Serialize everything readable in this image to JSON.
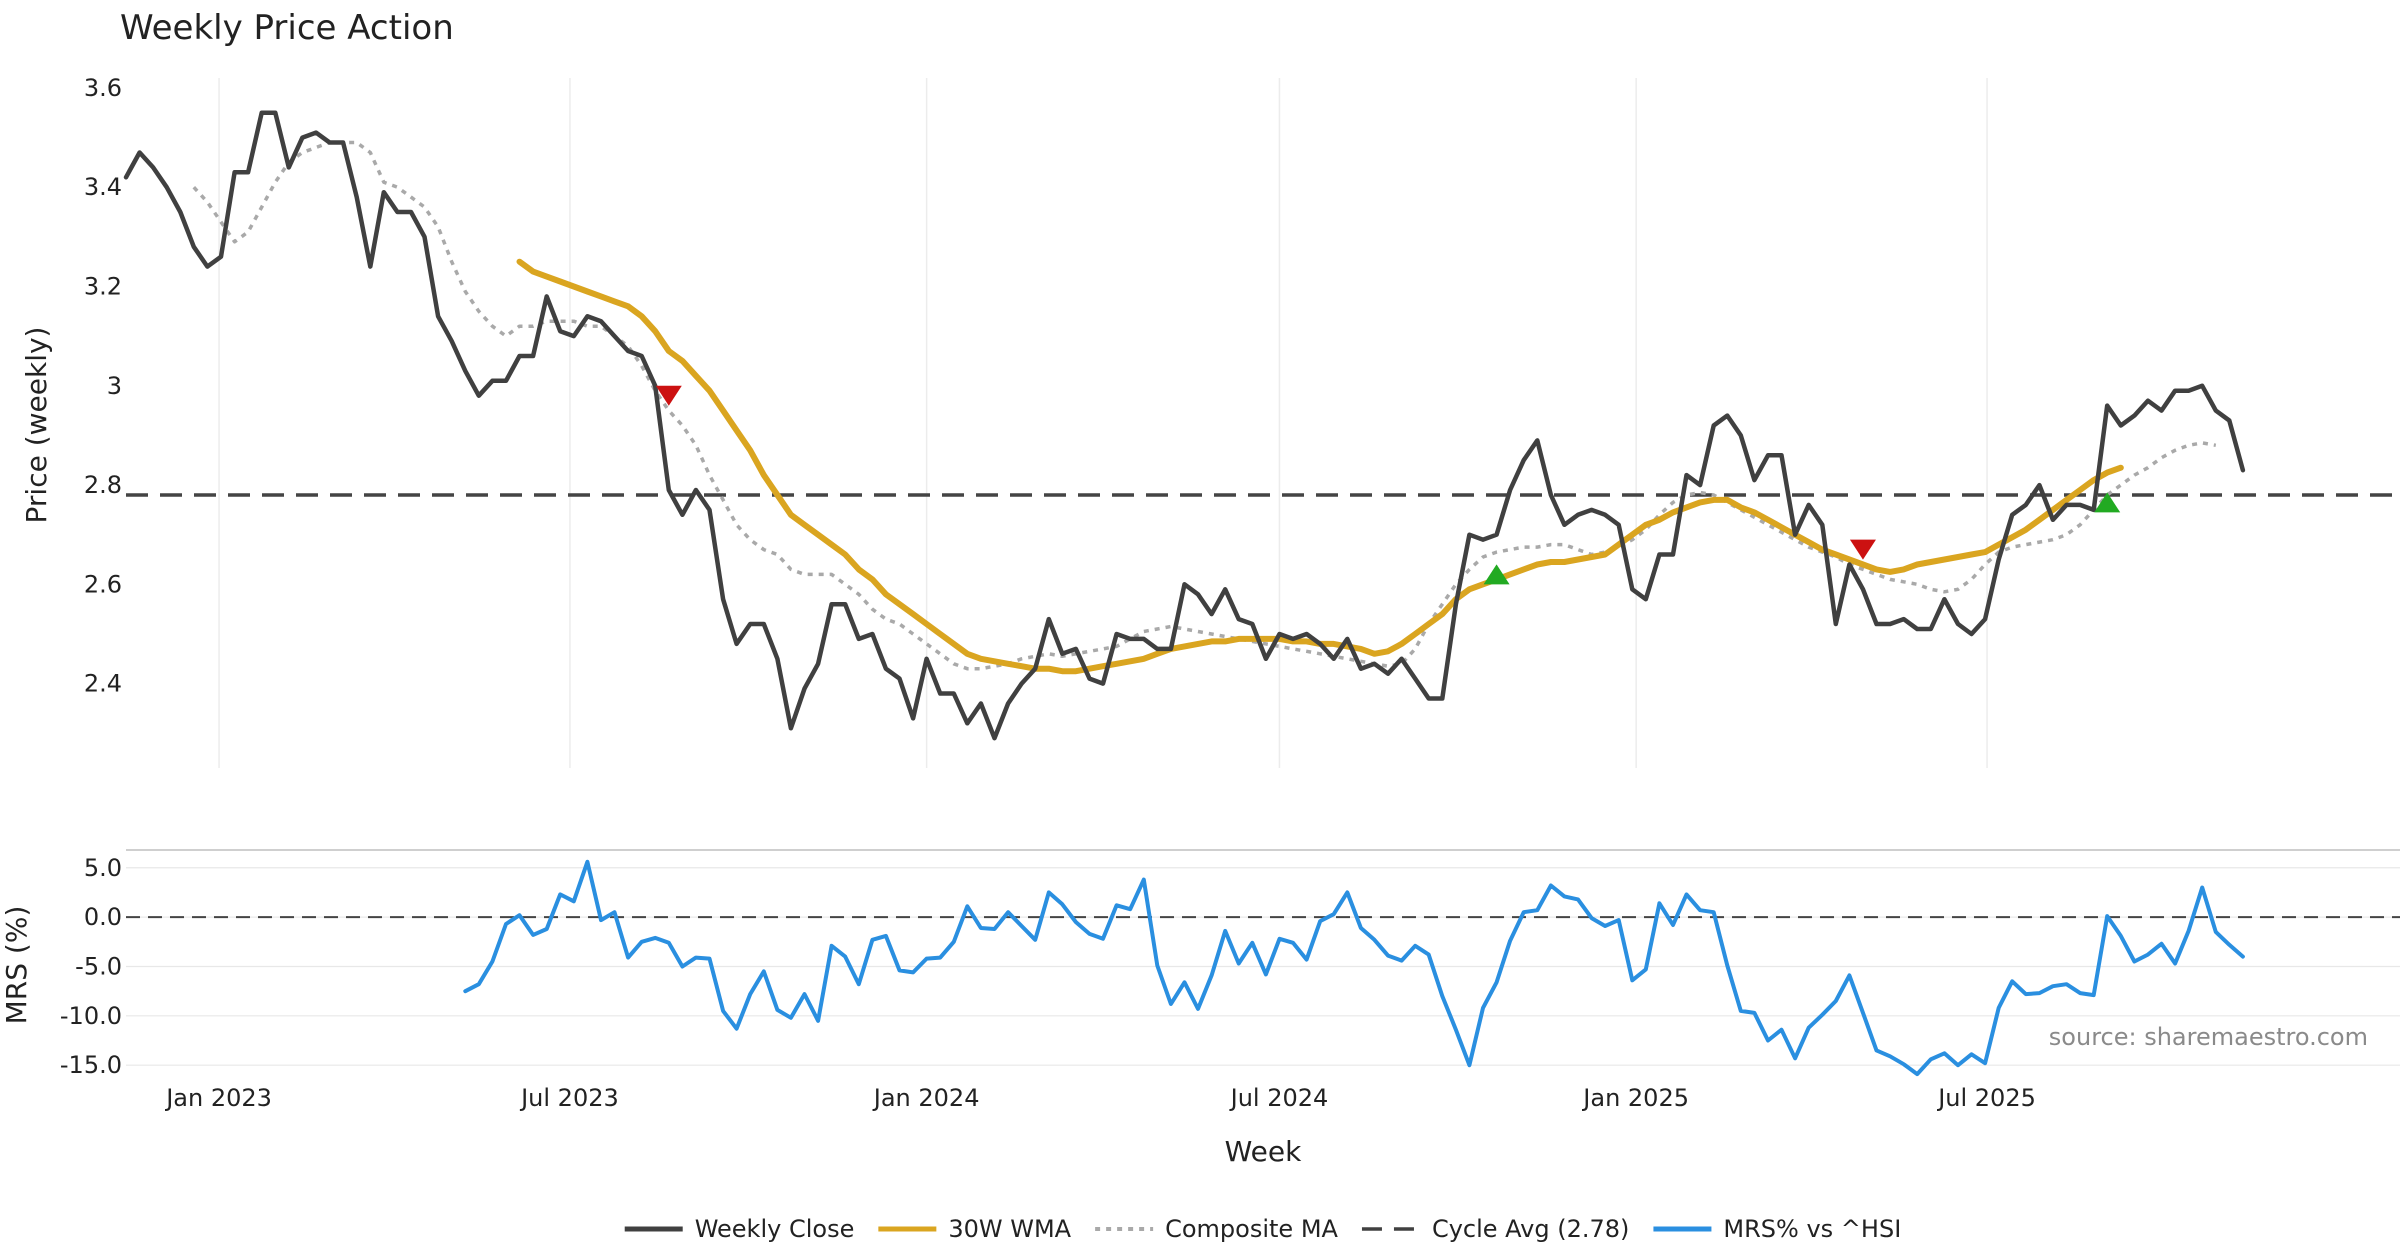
{
  "chart_data": {
    "type": "line",
    "title": "Weekly Price Action",
    "xlabel": "Week",
    "source_note": "source: sharemaestro.com",
    "x_start": "2022-11-14",
    "x_tick_labels": [
      "Jan 2023",
      "Jul 2023",
      "Jan 2024",
      "Jul 2024",
      "Jan 2025",
      "Jul 2025"
    ],
    "x_tick_dates": [
      "2023-01-01",
      "2023-07-01",
      "2024-01-01",
      "2024-07-01",
      "2025-01-01",
      "2025-07-01"
    ],
    "price_panel": {
      "ylabel": "Price (weekly)",
      "ylim": [
        2.23,
        3.62
      ],
      "y_ticks": [
        2.4,
        2.6,
        2.8,
        3.0,
        3.2,
        3.4,
        3.6
      ],
      "y_tick_labels": [
        "2.4",
        "2.6",
        "2.8",
        "3",
        "3.2",
        "3.4",
        "3.6"
      ],
      "cycle_avg": 2.78,
      "series": [
        {
          "name": "Weekly Close",
          "color": "#404040",
          "style": "solid",
          "start_index": 0,
          "values": [
            3.42,
            3.47,
            3.44,
            3.4,
            3.35,
            3.28,
            3.24,
            3.26,
            3.43,
            3.43,
            3.55,
            3.55,
            3.44,
            3.5,
            3.51,
            3.49,
            3.49,
            3.38,
            3.24,
            3.39,
            3.35,
            3.35,
            3.3,
            3.14,
            3.09,
            3.03,
            2.98,
            3.01,
            3.01,
            3.06,
            3.06,
            3.18,
            3.11,
            3.1,
            3.14,
            3.13,
            3.1,
            3.07,
            3.06,
            3.0,
            2.79,
            2.74,
            2.79,
            2.75,
            2.57,
            2.48,
            2.52,
            2.52,
            2.45,
            2.31,
            2.39,
            2.44,
            2.56,
            2.56,
            2.49,
            2.5,
            2.43,
            2.41,
            2.33,
            2.45,
            2.38,
            2.38,
            2.32,
            2.36,
            2.29,
            2.36,
            2.4,
            2.43,
            2.53,
            2.46,
            2.47,
            2.41,
            2.4,
            2.5,
            2.49,
            2.49,
            2.47,
            2.47,
            2.6,
            2.58,
            2.54,
            2.59,
            2.53,
            2.52,
            2.45,
            2.5,
            2.49,
            2.5,
            2.48,
            2.45,
            2.49,
            2.43,
            2.44,
            2.42,
            2.45,
            2.41,
            2.37,
            2.37,
            2.56,
            2.7,
            2.69,
            2.7,
            2.79,
            2.85,
            2.89,
            2.78,
            2.72,
            2.74,
            2.75,
            2.74,
            2.72,
            2.59,
            2.57,
            2.66,
            2.66,
            2.82,
            2.8,
            2.92,
            2.94,
            2.9,
            2.81,
            2.86,
            2.86,
            2.7,
            2.76,
            2.72,
            2.52,
            2.64,
            2.59,
            2.52,
            2.52,
            2.53,
            2.51,
            2.51,
            2.57,
            2.52,
            2.5,
            2.53,
            2.65,
            2.74,
            2.76,
            2.8,
            2.73,
            2.76,
            2.76,
            2.75,
            2.96,
            2.92,
            2.94,
            2.97,
            2.95,
            2.99,
            2.99,
            3.0,
            2.95,
            2.93,
            2.83
          ]
        },
        {
          "name": "30W WMA",
          "color": "#DAA520",
          "style": "solid",
          "start_index": 29,
          "values": [
            3.25,
            3.23,
            3.22,
            3.21,
            3.2,
            3.19,
            3.18,
            3.17,
            3.16,
            3.14,
            3.11,
            3.07,
            3.05,
            3.02,
            2.99,
            2.95,
            2.91,
            2.87,
            2.82,
            2.78,
            2.74,
            2.72,
            2.7,
            2.68,
            2.66,
            2.63,
            2.61,
            2.58,
            2.56,
            2.54,
            2.52,
            2.5,
            2.48,
            2.46,
            2.45,
            2.445,
            2.44,
            2.435,
            2.43,
            2.43,
            2.425,
            2.425,
            2.43,
            2.435,
            2.44,
            2.445,
            2.45,
            2.46,
            2.47,
            2.475,
            2.48,
            2.485,
            2.485,
            2.49,
            2.49,
            2.49,
            2.49,
            2.485,
            2.485,
            2.48,
            2.48,
            2.475,
            2.47,
            2.46,
            2.465,
            2.48,
            2.5,
            2.52,
            2.54,
            2.57,
            2.59,
            2.6,
            2.61,
            2.62,
            2.63,
            2.64,
            2.645,
            2.645,
            2.65,
            2.655,
            2.66,
            2.68,
            2.7,
            2.72,
            2.73,
            2.745,
            2.755,
            2.765,
            2.77,
            2.77,
            2.755,
            2.745,
            2.73,
            2.715,
            2.7,
            2.685,
            2.67,
            2.66,
            2.65,
            2.64,
            2.63,
            2.625,
            2.63,
            2.64,
            2.645,
            2.65,
            2.655,
            2.66,
            2.665,
            2.68,
            2.695,
            2.71,
            2.73,
            2.75,
            2.77,
            2.79,
            2.81,
            2.825,
            2.835
          ]
        },
        {
          "name": "Composite MA",
          "color": "#A9A9A9",
          "style": "dotted",
          "start_index": 5,
          "values": [
            3.4,
            3.37,
            3.33,
            3.29,
            3.31,
            3.36,
            3.41,
            3.45,
            3.47,
            3.48,
            3.49,
            3.49,
            3.49,
            3.47,
            3.41,
            3.4,
            3.38,
            3.36,
            3.32,
            3.25,
            3.19,
            3.15,
            3.12,
            3.1,
            3.12,
            3.12,
            3.13,
            3.13,
            3.13,
            3.12,
            3.12,
            3.1,
            3.08,
            3.04,
            2.99,
            2.95,
            2.92,
            2.88,
            2.82,
            2.77,
            2.72,
            2.69,
            2.67,
            2.66,
            2.63,
            2.62,
            2.62,
            2.62,
            2.6,
            2.58,
            2.55,
            2.53,
            2.52,
            2.5,
            2.48,
            2.46,
            2.44,
            2.43,
            2.43,
            2.435,
            2.44,
            2.45,
            2.455,
            2.46,
            2.455,
            2.46,
            2.465,
            2.47,
            2.475,
            2.49,
            2.505,
            2.51,
            2.515,
            2.51,
            2.505,
            2.5,
            2.495,
            2.49,
            2.485,
            2.48,
            2.475,
            2.47,
            2.465,
            2.46,
            2.455,
            2.45,
            2.445,
            2.44,
            2.435,
            2.44,
            2.47,
            2.52,
            2.56,
            2.6,
            2.63,
            2.655,
            2.665,
            2.67,
            2.675,
            2.675,
            2.68,
            2.68,
            2.67,
            2.66,
            2.665,
            2.675,
            2.69,
            2.71,
            2.74,
            2.765,
            2.78,
            2.785,
            2.78,
            2.765,
            2.75,
            2.735,
            2.72,
            2.705,
            2.69,
            2.675,
            2.665,
            2.655,
            2.64,
            2.63,
            2.62,
            2.61,
            2.605,
            2.6,
            2.59,
            2.585,
            2.59,
            2.61,
            2.64,
            2.665,
            2.675,
            2.68,
            2.685,
            2.69,
            2.7,
            2.72,
            2.75,
            2.78,
            2.8,
            2.82,
            2.835,
            2.855,
            2.87,
            2.88,
            2.885,
            2.88
          ]
        }
      ],
      "signals": [
        {
          "type": "sell",
          "index": 40,
          "value": 2.98,
          "color": "#cc1111"
        },
        {
          "type": "buy",
          "index": 101,
          "value": 2.62,
          "color": "#22aa22"
        },
        {
          "type": "sell",
          "index": 128,
          "value": 2.67,
          "color": "#cc1111"
        },
        {
          "type": "buy",
          "index": 146,
          "value": 2.765,
          "color": "#22aa22"
        }
      ]
    },
    "mrs_panel": {
      "ylabel": "MRS (%)",
      "ylim": [
        -16.5,
        6.8
      ],
      "y_ticks": [
        5.0,
        0.0,
        -5.0,
        -10.0,
        -15.0
      ],
      "y_tick_labels": [
        "5.0",
        "0.0",
        "-5.0",
        "-10.0",
        "-15.0"
      ],
      "zero_line": 0,
      "series": [
        {
          "name": "MRS% vs ^HSI",
          "color": "#2a8fe0",
          "start_index": 25,
          "values": [
            -7.5,
            -6.8,
            -4.5,
            -0.7,
            0.2,
            -1.8,
            -1.2,
            2.3,
            1.6,
            5.6,
            -0.3,
            0.5,
            -4.1,
            -2.5,
            -2.1,
            -2.6,
            -5.0,
            -4.1,
            -4.2,
            -9.5,
            -11.3,
            -7.8,
            -5.5,
            -9.4,
            -10.2,
            -7.8,
            -10.5,
            -2.9,
            -4.0,
            -6.8,
            -2.3,
            -1.9,
            -5.4,
            -5.6,
            -4.2,
            -4.1,
            -2.5,
            1.1,
            -1.1,
            -1.2,
            0.5,
            -0.9,
            -2.3,
            2.5,
            1.3,
            -0.5,
            -1.7,
            -2.2,
            1.2,
            0.8,
            3.8,
            -4.9,
            -8.8,
            -6.6,
            -9.3,
            -5.9,
            -1.4,
            -4.7,
            -2.6,
            -5.8,
            -2.2,
            -2.6,
            -4.3,
            -0.4,
            0.3,
            2.5,
            -1.1,
            -2.3,
            -3.9,
            -4.4,
            -2.9,
            -3.8,
            -8.0,
            -11.4,
            -15.0,
            -9.2,
            -6.6,
            -2.4,
            0.5,
            0.7,
            3.2,
            2.1,
            1.8,
            -0.1,
            -0.9,
            -0.3,
            -6.4,
            -5.3,
            1.4,
            -0.8,
            2.3,
            0.7,
            0.5,
            -4.9,
            -9.5,
            -9.7,
            -12.5,
            -11.4,
            -14.3,
            -11.2,
            -9.9,
            -8.5,
            -5.9,
            -9.7,
            -13.5,
            -14.1,
            -14.9,
            -15.9,
            -14.4,
            -13.8,
            -15.0,
            -13.9,
            -14.8,
            -9.2,
            -6.5,
            -7.8,
            -7.7,
            -7.0,
            -6.8,
            -7.7,
            -7.9,
            0.1,
            -1.9,
            -4.5,
            -3.8,
            -2.7,
            -4.7,
            -1.4,
            3.0,
            -1.5,
            -2.8,
            -4.0
          ]
        }
      ]
    },
    "legend": {
      "placement": "bottom-center",
      "entries": [
        {
          "label": "Weekly Close",
          "color": "#404040",
          "style": "solid"
        },
        {
          "label": "30W WMA",
          "color": "#DAA520",
          "style": "solid"
        },
        {
          "label": "Composite MA",
          "color": "#A9A9A9",
          "style": "dotted"
        },
        {
          "label": "Cycle Avg (2.78)",
          "color": "#404040",
          "style": "dashed"
        },
        {
          "label": "MRS% vs ^HSI",
          "color": "#2a8fe0",
          "style": "solid"
        }
      ]
    }
  }
}
